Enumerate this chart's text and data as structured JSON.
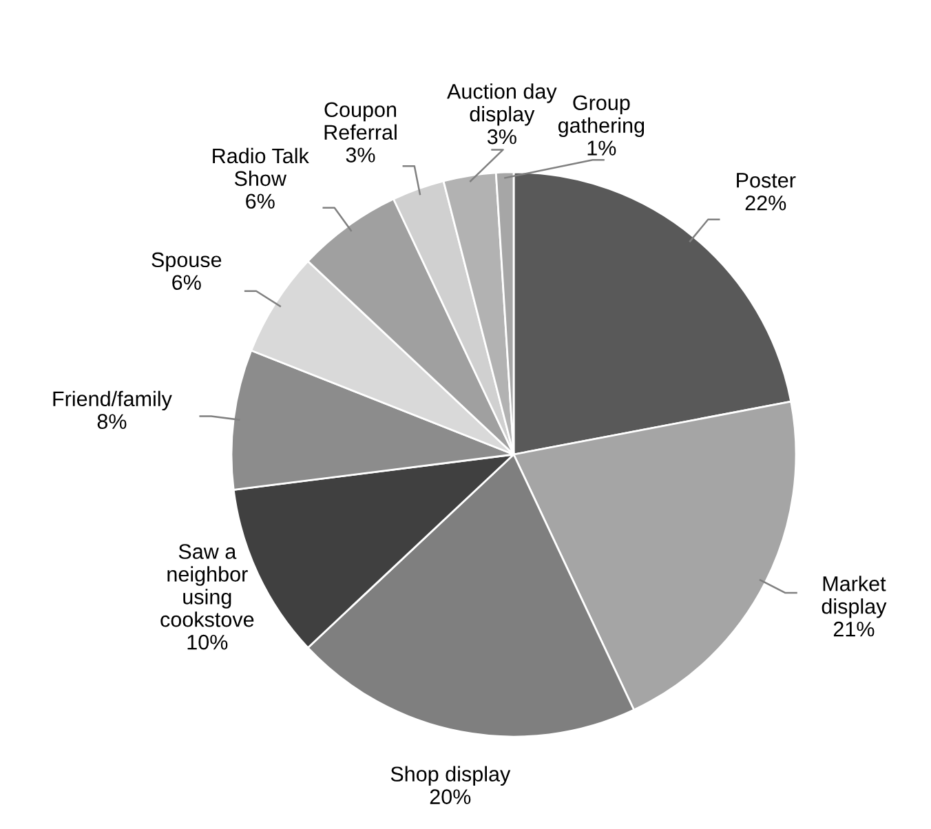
{
  "chart_data": {
    "type": "pie",
    "categories": [
      "Poster",
      "Market\ndisplay",
      "Shop display",
      "Saw a\nneighbor\nusing\ncookstove",
      "Friend/family",
      "Spouse",
      "Radio Talk\nShow",
      "Coupon\nReferral",
      "Auction day\ndisplay",
      "Group\ngathering"
    ],
    "values": [
      22,
      21,
      20,
      10,
      8,
      6,
      6,
      3,
      3,
      1
    ],
    "value_labels": [
      "22%",
      "21%",
      "20%",
      "10%",
      "8%",
      "6%",
      "6%",
      "3%",
      "3%",
      "1%"
    ],
    "colors": [
      "#595959",
      "#a5a5a5",
      "#7f7f7f",
      "#404040",
      "#8c8c8c",
      "#d9d9d9",
      "#a0a0a0",
      "#d0d0d0",
      "#b2b2b2",
      "#a6a6a6"
    ],
    "legend": false
  }
}
